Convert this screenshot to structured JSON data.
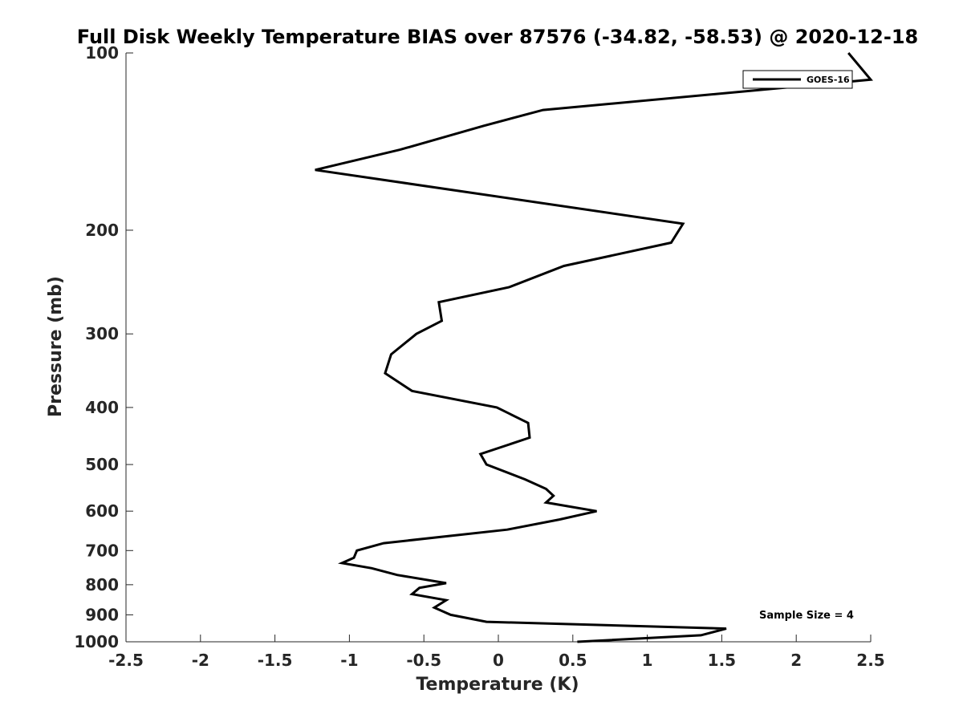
{
  "chart_data": {
    "type": "line",
    "title": "Full Disk Weekly Temperature BIAS over 87576 (-34.82, -58.53) @ 2020-12-18",
    "xlabel": "Temperature (K)",
    "ylabel": "Pressure (mb)",
    "xlim": [
      -2.5,
      2.5
    ],
    "ylim": [
      1000,
      100
    ],
    "y_scale": "log",
    "y_reversed": true,
    "grid": false,
    "xticks": [
      "-2.5",
      "-2",
      "-1.5",
      "-1",
      "-0.5",
      "0",
      "0.5",
      "1",
      "1.5",
      "2",
      "2.5"
    ],
    "yticks": [
      "100",
      "200",
      "300",
      "400",
      "500",
      "600",
      "700",
      "800",
      "900",
      "1000"
    ],
    "legend_position": "top-right",
    "series": [
      {
        "name": "GOES-16",
        "color": "#000000",
        "points": [
          [
            0.53,
            1000
          ],
          [
            1.36,
            975
          ],
          [
            1.53,
            950
          ],
          [
            -0.08,
            925
          ],
          [
            -0.32,
            900
          ],
          [
            -0.43,
            875
          ],
          [
            -0.35,
            850
          ],
          [
            -0.58,
            830
          ],
          [
            -0.53,
            810
          ],
          [
            -0.35,
            795
          ],
          [
            -0.68,
            770
          ],
          [
            -0.85,
            750
          ],
          [
            -1.05,
            735
          ],
          [
            -0.97,
            720
          ],
          [
            -0.95,
            700
          ],
          [
            -0.77,
            680
          ],
          [
            0.06,
            645
          ],
          [
            0.41,
            620
          ],
          [
            0.66,
            600
          ],
          [
            0.32,
            580
          ],
          [
            0.37,
            565
          ],
          [
            0.32,
            550
          ],
          [
            0.18,
            530
          ],
          [
            -0.08,
            500
          ],
          [
            -0.12,
            480
          ],
          [
            0.21,
            450
          ],
          [
            0.2,
            425
          ],
          [
            -0.01,
            400
          ],
          [
            -0.58,
            375
          ],
          [
            -0.76,
            350
          ],
          [
            -0.72,
            325
          ],
          [
            -0.55,
            300
          ],
          [
            -0.38,
            285
          ],
          [
            -0.4,
            265
          ],
          [
            0.07,
            250
          ],
          [
            0.44,
            230
          ],
          [
            1.16,
            210
          ],
          [
            1.24,
            195
          ],
          [
            -1.23,
            158
          ],
          [
            -0.66,
            146
          ],
          [
            -0.1,
            133
          ],
          [
            0.3,
            125
          ],
          [
            2.5,
            111
          ],
          [
            2.35,
            100
          ]
        ]
      }
    ],
    "annotations": [
      "Sample Size = 4"
    ]
  }
}
